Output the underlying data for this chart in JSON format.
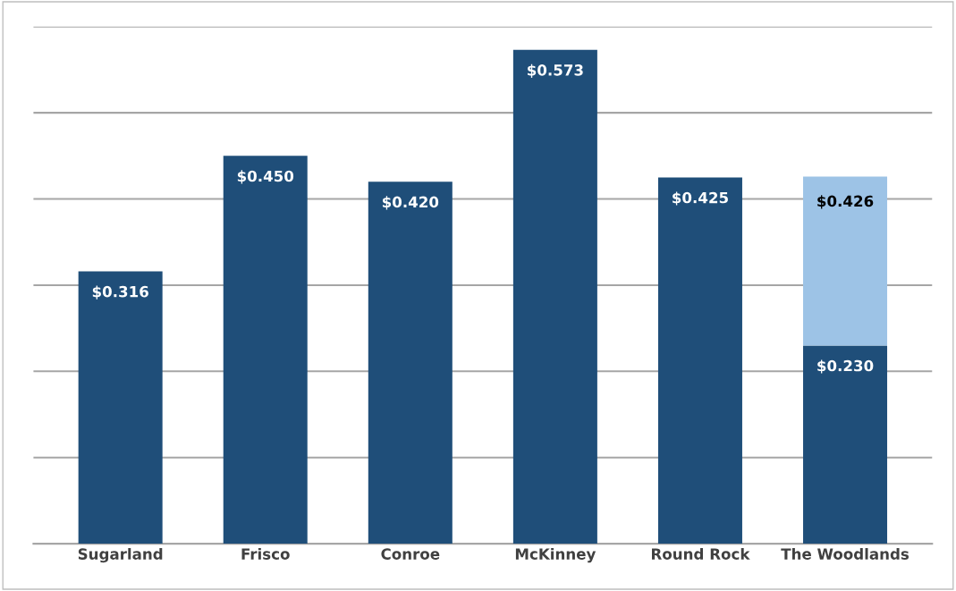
{
  "chart_data": {
    "type": "bar",
    "stacked": true,
    "categories": [
      "Sugarland",
      "Frisco",
      "Conroe",
      "McKinney",
      "Round Rock",
      "The Woodlands"
    ],
    "series": [
      {
        "color": "#1f4e79",
        "values": [
          0.316,
          0.45,
          0.42,
          0.573,
          0.425,
          0.23
        ],
        "value_labels": [
          "$0.316",
          "$0.450",
          "$0.420",
          "$0.573",
          "$0.425",
          "$0.230"
        ]
      },
      {
        "color": "#9dc3e6",
        "values": [
          null,
          null,
          null,
          null,
          null,
          0.196
        ]
      }
    ],
    "totals": [
      null,
      null,
      null,
      null,
      null,
      "$0.426"
    ],
    "ylim": [
      0,
      0.6
    ],
    "yticks": [
      {
        "value": 0,
        "label": null
      },
      {
        "value": 0.1,
        "label": null
      },
      {
        "value": 0.2,
        "label": null
      },
      {
        "value": 0.3,
        "label": null
      },
      {
        "value": 0.4,
        "label": null
      },
      {
        "value": 0.5,
        "label": null
      },
      {
        "value": 0.6,
        "label": null
      }
    ],
    "grid": "y",
    "tick_labels": "x"
  }
}
